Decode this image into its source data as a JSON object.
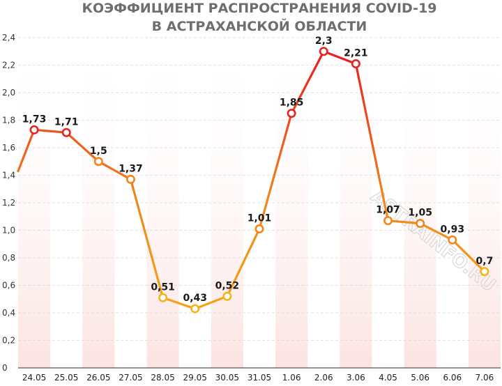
{
  "chart_data": {
    "type": "line",
    "title": [
      "КОЭФФИЦИЕНТ РАСПРОСТРАНЕНИЯ COVID-19",
      "В АСТРАХАНСКОЙ ОБЛАСТИ"
    ],
    "categories": [
      "24.05",
      "25.05",
      "26.05",
      "27.05",
      "28.05",
      "29.05",
      "30.05",
      "31.05",
      "1.06",
      "2.06",
      "3.06",
      "4.05",
      "5.06",
      "6.06",
      "7.06"
    ],
    "values": [
      1.73,
      1.71,
      1.5,
      1.37,
      0.51,
      0.43,
      0.52,
      1.01,
      1.85,
      2.3,
      2.21,
      1.07,
      1.05,
      0.93,
      0.7
    ],
    "value_labels": [
      "1,73",
      "1,71",
      "1,5",
      "1,37",
      "0,51",
      "0,43",
      "0,52",
      "1,01",
      "1,85",
      "2,3",
      "2,21",
      "1,07",
      "1,05",
      "0,93",
      "0,7"
    ],
    "start_value": 1.43,
    "yticks": [
      "0",
      "0,2",
      "0,4",
      "0,6",
      "0,8",
      "1,0",
      "1,2",
      "1,4",
      "1,6",
      "1,8",
      "2,0",
      "2,2",
      "2,4"
    ],
    "ylim": [
      0,
      2.4
    ],
    "grid": true,
    "colors": {
      "high": "#e8231f",
      "mid": "#f2851c",
      "low": "#f5b418",
      "marker_fill": "#ffffff",
      "band": "#fbe3e1"
    }
  },
  "watermark": "ASTRAINFO.RU"
}
